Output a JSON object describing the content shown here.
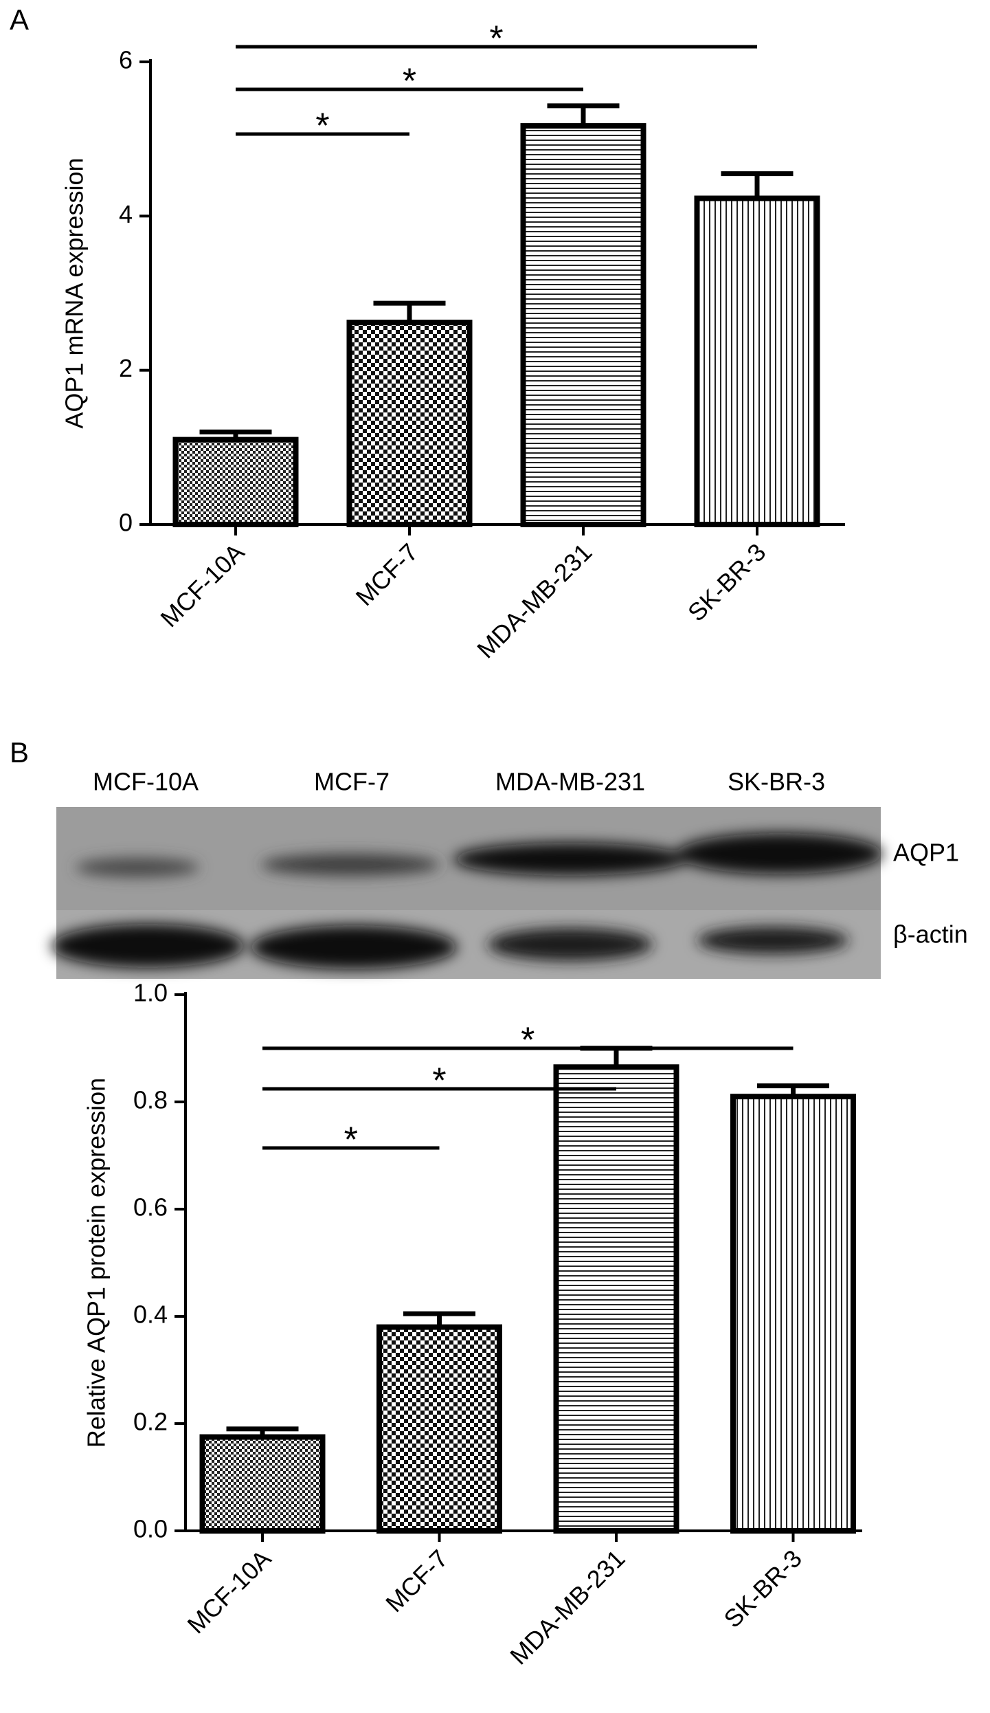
{
  "panels": [
    "A",
    "B"
  ],
  "blot": {
    "lanes": [
      "MCF-10A",
      "MCF-7",
      "MDA-MB-231",
      "SK-BR-3"
    ],
    "rows": [
      "AQP1",
      "β-actin"
    ]
  },
  "chart_data": [
    {
      "type": "bar",
      "ylabel": "AQP1 mRNA expression",
      "categories": [
        "MCF-10A",
        "MCF-7",
        "MDA-MB-231",
        "SK-BR-3"
      ],
      "values": [
        1.1,
        2.62,
        5.17,
        4.23
      ],
      "errors": [
        0.1,
        0.25,
        0.26,
        0.32
      ],
      "color": "#000000",
      "patterns": [
        "fine-checker",
        "checker",
        "horizontal",
        "vertical"
      ],
      "ylim": [
        0,
        6
      ],
      "yticks": [
        0,
        2,
        4,
        6
      ],
      "annotations": [
        {
          "text": "*",
          "between": [
            0,
            3
          ]
        },
        {
          "text": "*",
          "between": [
            0,
            2
          ]
        },
        {
          "text": "*",
          "between": [
            0,
            1
          ]
        }
      ]
    },
    {
      "type": "bar",
      "ylabel": "Relative AQP1 protein expression",
      "categories": [
        "MCF-10A",
        "MCF-7",
        "MDA-MB-231",
        "SK-BR-3"
      ],
      "values": [
        0.175,
        0.38,
        0.865,
        0.81
      ],
      "errors": [
        0.015,
        0.025,
        0.035,
        0.02
      ],
      "color": "#000000",
      "patterns": [
        "fine-checker",
        "checker",
        "horizontal",
        "vertical"
      ],
      "ylim": [
        0,
        1
      ],
      "yticks": [
        {
          "value": 0,
          "label": "0.0"
        },
        0.2,
        0.4,
        0.6,
        0.8,
        {
          "value": 1,
          "label": "1.0"
        }
      ],
      "annotations": [
        {
          "text": "*",
          "between": [
            0,
            3
          ]
        },
        {
          "text": "*",
          "between": [
            0,
            2
          ]
        },
        {
          "text": "*",
          "between": [
            0,
            1
          ]
        }
      ]
    }
  ]
}
